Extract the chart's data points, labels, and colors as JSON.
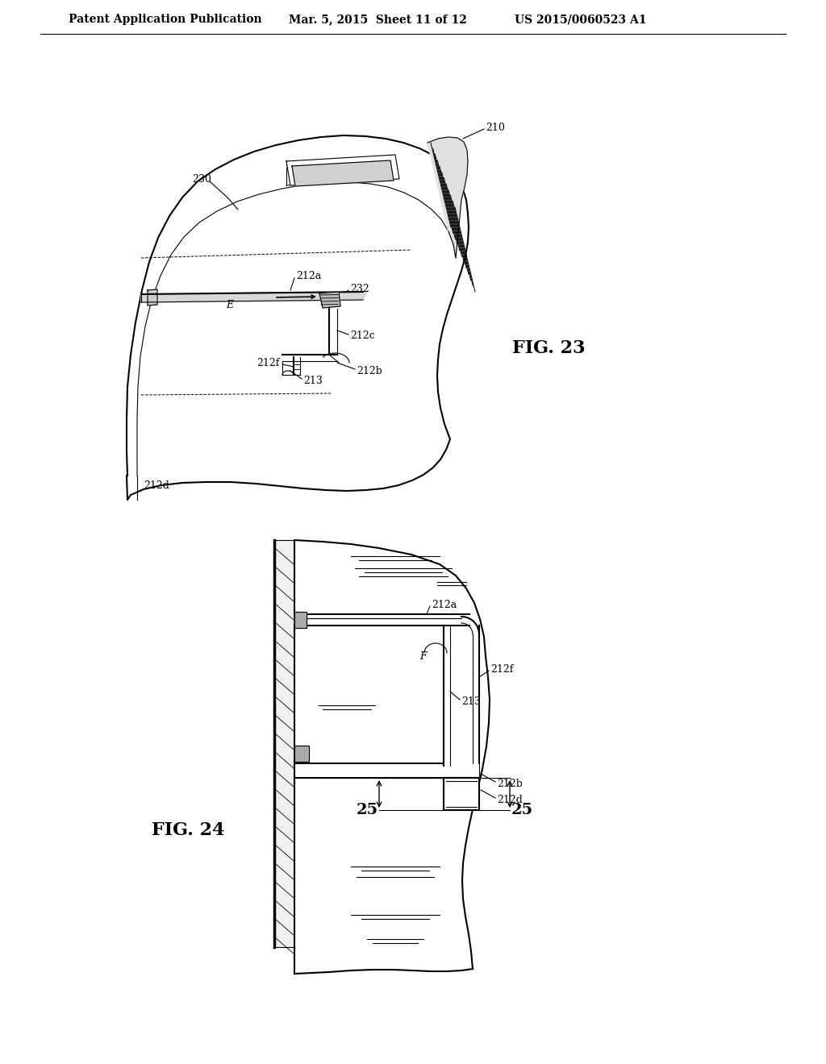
{
  "bg_color": "#ffffff",
  "line_color": "#000000",
  "header_left": "Patent Application Publication",
  "header_mid": "Mar. 5, 2015  Sheet 11 of 12",
  "header_right": "US 2015/0060523 A1",
  "fig23_label": "FIG. 23",
  "fig24_label": "FIG. 24",
  "lw_thin": 0.8,
  "lw_med": 1.5,
  "lw_thick": 2.5,
  "label_fs": 9,
  "fig_label_fs": 16
}
